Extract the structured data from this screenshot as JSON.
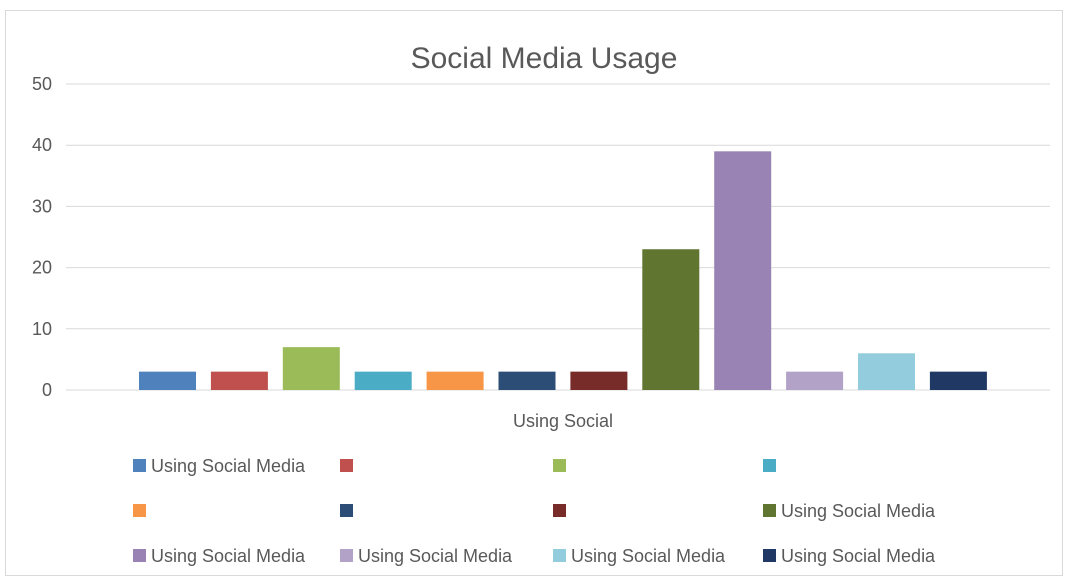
{
  "chart_data": {
    "type": "bar",
    "title": "Social Media Usage",
    "xlabel": "",
    "ylabel": "",
    "categories": [
      "Using Social"
    ],
    "ylim": [
      0,
      50
    ],
    "yticks": [
      0,
      10,
      20,
      30,
      40,
      50
    ],
    "grid": true,
    "legend_position": "bottom",
    "series": [
      {
        "name": "Using Social Media",
        "values": [
          3
        ],
        "color": "#4F81BD"
      },
      {
        "name": "",
        "values": [
          3
        ],
        "color": "#C0504D"
      },
      {
        "name": "",
        "values": [
          7
        ],
        "color": "#9BBB59"
      },
      {
        "name": "",
        "values": [
          3
        ],
        "color": "#4BACC6"
      },
      {
        "name": "",
        "values": [
          3
        ],
        "color": "#F79646"
      },
      {
        "name": "",
        "values": [
          3
        ],
        "color": "#2C4D75"
      },
      {
        "name": "",
        "values": [
          3
        ],
        "color": "#772C2A"
      },
      {
        "name": "Using Social Media",
        "values": [
          23
        ],
        "color": "#5F7530"
      },
      {
        "name": "Using Social Media",
        "values": [
          39
        ],
        "color": "#9983B5"
      },
      {
        "name": "Using Social Media",
        "values": [
          3
        ],
        "color": "#B3A2C7"
      },
      {
        "name": "Using Social Media",
        "values": [
          6
        ],
        "color": "#93CDDD"
      },
      {
        "name": "Using Social Media",
        "values": [
          3
        ],
        "color": "#1F3864"
      }
    ]
  }
}
